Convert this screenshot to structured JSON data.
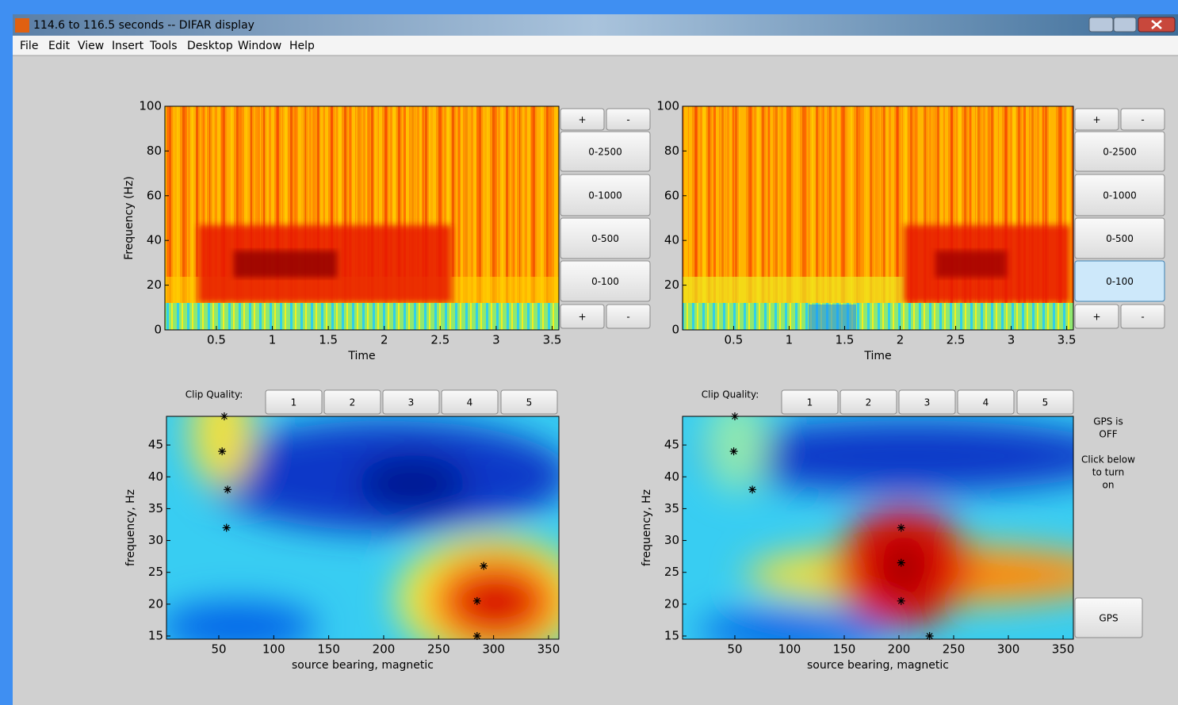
{
  "window": {
    "title": "114.6 to 116.5 seconds -- DIFAR display",
    "menu": [
      "File",
      "Edit",
      "View",
      "Insert",
      "Tools",
      "Desktop",
      "Window",
      "Help"
    ]
  },
  "panels": [
    {
      "spectrogram": {
        "ylabel": "Frequency (Hz)",
        "xlabel": "Time",
        "xlim": [
          0.04,
          3.56
        ],
        "xticks": [
          0.5,
          1,
          1.5,
          2,
          2.5,
          3,
          3.5
        ],
        "ylim": [
          0,
          100
        ],
        "yticks": [
          0,
          20,
          40,
          60,
          80,
          100
        ]
      },
      "buttons": [
        "+",
        "-",
        "0-2500",
        "0-1000",
        "0-500",
        "0-100",
        "+",
        "-"
      ],
      "clip_quality": {
        "label": "Clip Quality:",
        "buttons": [
          "1",
          "2",
          "3",
          "4",
          "5"
        ]
      },
      "bearing": {
        "xlabel": "source bearing, magnetic",
        "ylabel": "frequency, Hz",
        "xlim": [
          2.4,
          359.4
        ],
        "ylim": [
          14.5,
          49.5
        ],
        "xticks": [
          50,
          100,
          150,
          200,
          250,
          300,
          350
        ],
        "yticks": [
          15,
          20,
          25,
          30,
          35,
          40,
          45
        ],
        "points": {
          "x": [
            55,
            53,
            58,
            57,
            291,
            285,
            285
          ],
          "y": [
            49.5,
            44,
            38,
            32,
            26,
            20.5,
            15
          ]
        }
      }
    },
    {
      "spectrogram": {
        "ylabel": null,
        "xlabel": "Time",
        "xlim": [
          0.04,
          3.56
        ],
        "xticks": [
          0.5,
          1,
          1.5,
          2,
          2.5,
          3,
          3.5
        ],
        "ylim": [
          0,
          100
        ],
        "yticks": [
          0,
          20,
          40,
          60,
          80,
          100
        ]
      },
      "buttons": [
        "+",
        "-",
        "0-2500",
        "0-1000",
        "0-500",
        "0-100",
        "+",
        "-"
      ],
      "clip_quality": {
        "label": "Clip Quality:",
        "buttons": [
          "1",
          "2",
          "3",
          "4",
          "5"
        ]
      },
      "bearing": {
        "xlabel": "source bearing, magnetic",
        "ylabel": "frequency, Hz",
        "xlim": [
          2.2,
          359.4
        ],
        "ylim": [
          14.5,
          49.5
        ],
        "xticks": [
          50,
          100,
          150,
          200,
          250,
          300,
          350
        ],
        "yticks": [
          15,
          20,
          25,
          30,
          35,
          40,
          45
        ],
        "points": {
          "x": [
            50,
            49,
            66,
            202,
            202,
            202,
            228
          ],
          "y": [
            49.5,
            44,
            38,
            32,
            26.5,
            20.5,
            15
          ]
        }
      }
    }
  ],
  "gps": {
    "status": [
      "GPS is",
      "OFF"
    ],
    "hint": [
      "Click below",
      "to turn",
      "on"
    ],
    "button": "GPS"
  }
}
